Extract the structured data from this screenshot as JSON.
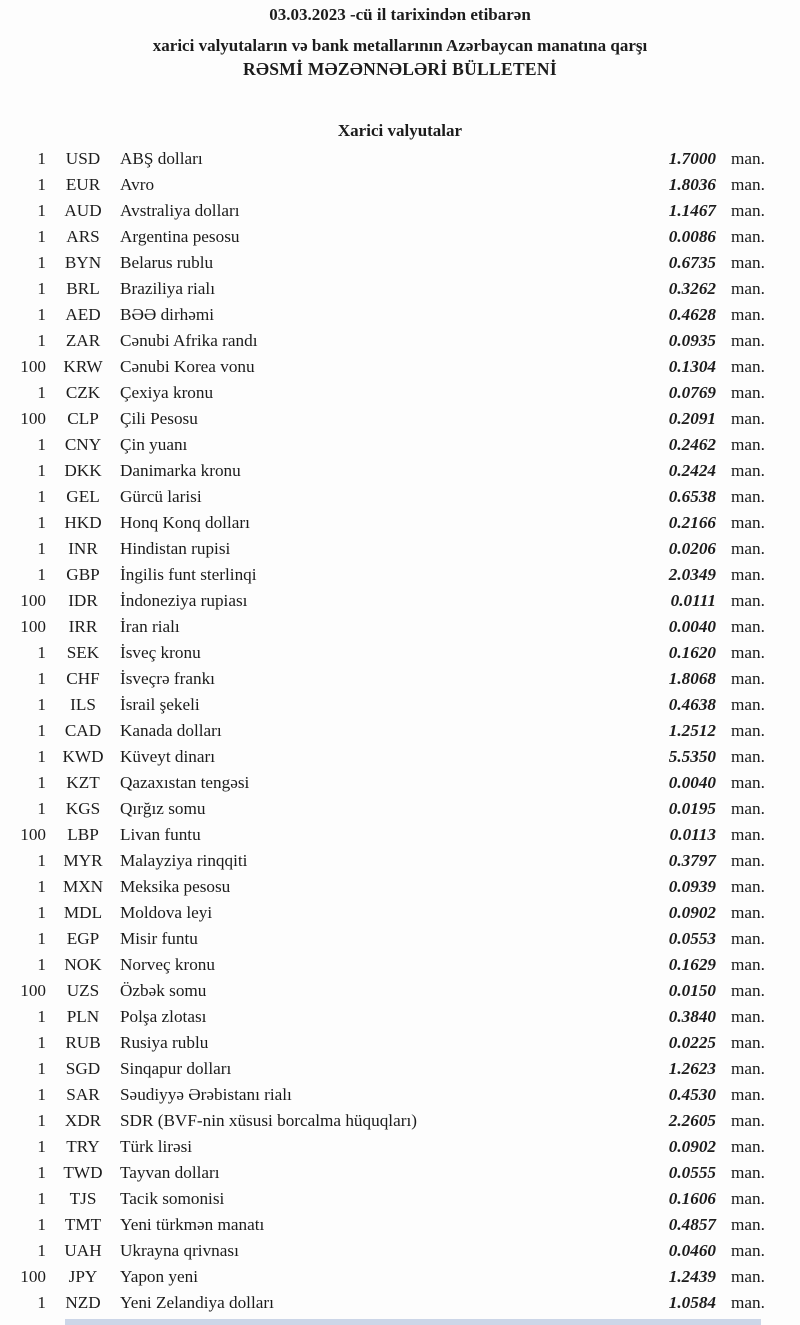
{
  "header": {
    "date_line": "03.03.2023 -cü il tarixindən etibarən",
    "subtitle": "xarici valyutaların və bank metallarının Azərbaycan manatına qarşı",
    "title": "RƏSMİ MƏZƏNNƏLƏRİ BÜLLETENİ"
  },
  "section": {
    "title": "Xarici valyutalar"
  },
  "unit_label": "man.",
  "rates": [
    {
      "qty": "1",
      "code": "USD",
      "name": "ABŞ dolları",
      "rate": "1.7000"
    },
    {
      "qty": "1",
      "code": "EUR",
      "name": "Avro",
      "rate": "1.8036"
    },
    {
      "qty": "1",
      "code": "AUD",
      "name": "Avstraliya dolları",
      "rate": "1.1467"
    },
    {
      "qty": "1",
      "code": "ARS",
      "name": "Argentina pesosu",
      "rate": "0.0086"
    },
    {
      "qty": "1",
      "code": "BYN",
      "name": "Belarus rublu",
      "rate": "0.6735"
    },
    {
      "qty": "1",
      "code": "BRL",
      "name": "Braziliya rialı",
      "rate": "0.3262"
    },
    {
      "qty": "1",
      "code": "AED",
      "name": "BƏƏ dirhəmi",
      "rate": "0.4628"
    },
    {
      "qty": "1",
      "code": "ZAR",
      "name": "Cənubi Afrika randı",
      "rate": "0.0935"
    },
    {
      "qty": "100",
      "code": "KRW",
      "name": "Cənubi Korea vonu",
      "rate": "0.1304"
    },
    {
      "qty": "1",
      "code": "CZK",
      "name": "Çexiya kronu",
      "rate": "0.0769"
    },
    {
      "qty": "100",
      "code": "CLP",
      "name": "Çili Pesosu",
      "rate": "0.2091"
    },
    {
      "qty": "1",
      "code": "CNY",
      "name": "Çin yuanı",
      "rate": "0.2462"
    },
    {
      "qty": "1",
      "code": "DKK",
      "name": "Danimarka kronu",
      "rate": "0.2424"
    },
    {
      "qty": "1",
      "code": "GEL",
      "name": "Gürcü larisi",
      "rate": "0.6538"
    },
    {
      "qty": "1",
      "code": "HKD",
      "name": "Honq Konq dolları",
      "rate": "0.2166"
    },
    {
      "qty": "1",
      "code": "INR",
      "name": "Hindistan rupisi",
      "rate": "0.0206"
    },
    {
      "qty": "1",
      "code": "GBP",
      "name": "İngilis funt sterlinqi",
      "rate": "2.0349"
    },
    {
      "qty": "100",
      "code": "IDR",
      "name": "İndoneziya rupiası",
      "rate": "0.0111"
    },
    {
      "qty": "100",
      "code": "IRR",
      "name": "İran rialı",
      "rate": "0.0040"
    },
    {
      "qty": "1",
      "code": "SEK",
      "name": "İsveç kronu",
      "rate": "0.1620"
    },
    {
      "qty": "1",
      "code": "CHF",
      "name": "İsveçrə frankı",
      "rate": "1.8068"
    },
    {
      "qty": "1",
      "code": "ILS",
      "name": "İsrail şekeli",
      "rate": "0.4638"
    },
    {
      "qty": "1",
      "code": "CAD",
      "name": "Kanada dolları",
      "rate": "1.2512"
    },
    {
      "qty": "1",
      "code": "KWD",
      "name": "Küveyt dinarı",
      "rate": "5.5350"
    },
    {
      "qty": "1",
      "code": "KZT",
      "name": "Qazaxıstan tengəsi",
      "rate": "0.0040"
    },
    {
      "qty": "1",
      "code": "KGS",
      "name": "Qırğız somu",
      "rate": "0.0195"
    },
    {
      "qty": "100",
      "code": "LBP",
      "name": "Livan funtu",
      "rate": "0.0113"
    },
    {
      "qty": "1",
      "code": "MYR",
      "name": "Malayziya rinqqiti",
      "rate": "0.3797"
    },
    {
      "qty": "1",
      "code": "MXN",
      "name": "Meksika pesosu",
      "rate": "0.0939"
    },
    {
      "qty": "1",
      "code": "MDL",
      "name": "Moldova leyi",
      "rate": "0.0902"
    },
    {
      "qty": "1",
      "code": "EGP",
      "name": "Misir funtu",
      "rate": "0.0553"
    },
    {
      "qty": "1",
      "code": "NOK",
      "name": "Norveç kronu",
      "rate": "0.1629"
    },
    {
      "qty": "100",
      "code": "UZS",
      "name": "Özbək somu",
      "rate": "0.0150"
    },
    {
      "qty": "1",
      "code": "PLN",
      "name": "Polşa zlotası",
      "rate": "0.3840"
    },
    {
      "qty": "1",
      "code": "RUB",
      "name": "Rusiya rublu",
      "rate": "0.0225"
    },
    {
      "qty": "1",
      "code": "SGD",
      "name": "Sinqapur dolları",
      "rate": "1.2623"
    },
    {
      "qty": "1",
      "code": "SAR",
      "name": "Səudiyyə Ərəbistanı rialı",
      "rate": "0.4530"
    },
    {
      "qty": "1",
      "code": "XDR",
      "name": "SDR (BVF-nin xüsusi borcalma hüquqları)",
      "rate": "2.2605"
    },
    {
      "qty": "1",
      "code": "TRY",
      "name": "Türk lirəsi",
      "rate": "0.0902"
    },
    {
      "qty": "1",
      "code": "TWD",
      "name": "Tayvan dolları",
      "rate": "0.0555"
    },
    {
      "qty": "1",
      "code": "TJS",
      "name": "Tacik somonisi",
      "rate": "0.1606"
    },
    {
      "qty": "1",
      "code": "TMT",
      "name": "Yeni türkmən manatı",
      "rate": "0.4857"
    },
    {
      "qty": "1",
      "code": "UAH",
      "name": "Ukrayna qrivnası",
      "rate": "0.0460"
    },
    {
      "qty": "100",
      "code": "JPY",
      "name": "Yapon yeni",
      "rate": "1.2439"
    },
    {
      "qty": "1",
      "code": "NZD",
      "name": "Yeni Zelandiya dolları",
      "rate": "1.0584"
    }
  ]
}
